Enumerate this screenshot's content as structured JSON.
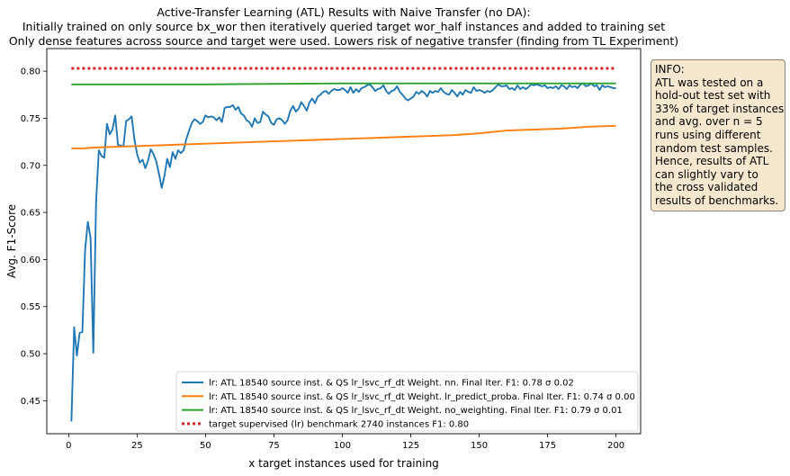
{
  "chart_data": {
    "type": "line",
    "title": [
      "Active-Transfer Learning (ATL) Results with Naive Transfer (no DA):",
      "Initially trained on only source bx_wor then iteratively queried target wor_half instances and added to training set",
      "Only dense features across source and target were used. Lowers risk of negative transfer (finding from TL Experiment)"
    ],
    "xlabel": "x target instances used for training",
    "ylabel": "Avg. F1-Score",
    "xlim": [
      -8,
      209
    ],
    "ylim": [
      0.415,
      0.824
    ],
    "xticks": [
      0,
      25,
      50,
      75,
      100,
      125,
      150,
      175,
      200
    ],
    "yticks": [
      0.45,
      0.5,
      0.55,
      0.6,
      0.65,
      0.7,
      0.75,
      0.8
    ],
    "ytick_labels": [
      "0.45",
      "0.50",
      "0.55",
      "0.60",
      "0.65",
      "0.70",
      "0.75",
      "0.80"
    ],
    "grid": false,
    "legend_position": "lower-right",
    "series": [
      {
        "name": "lr: ATL 18540 source inst. & QS lr_lsvc_rf_dt Weight. nn. Final Iter. F1: 0.78 σ 0.02",
        "color": "#1f77b4",
        "style": "solid",
        "points": [
          [
            1,
            0.428
          ],
          [
            2,
            0.528
          ],
          [
            3,
            0.498
          ],
          [
            4,
            0.522
          ],
          [
            5,
            0.523
          ],
          [
            6,
            0.61
          ],
          [
            7,
            0.64
          ],
          [
            8,
            0.623
          ],
          [
            9,
            0.501
          ],
          [
            10,
            0.66
          ],
          [
            11,
            0.716
          ],
          [
            12,
            0.71
          ],
          [
            13,
            0.708
          ],
          [
            14,
            0.744
          ],
          [
            15,
            0.733
          ],
          [
            16,
            0.738
          ],
          [
            17,
            0.753
          ],
          [
            18,
            0.722
          ],
          [
            19,
            0.721
          ],
          [
            20,
            0.72
          ],
          [
            21,
            0.747
          ],
          [
            22,
            0.749
          ],
          [
            23,
            0.752
          ],
          [
            24,
            0.728
          ],
          [
            25,
            0.712
          ],
          [
            26,
            0.703
          ],
          [
            27,
            0.706
          ],
          [
            28,
            0.697
          ],
          [
            29,
            0.705
          ],
          [
            30,
            0.717
          ],
          [
            31,
            0.712
          ],
          [
            32,
            0.704
          ],
          [
            33,
            0.691
          ],
          [
            34,
            0.676
          ],
          [
            35,
            0.689
          ],
          [
            36,
            0.707
          ],
          [
            37,
            0.698
          ],
          [
            38,
            0.714
          ],
          [
            39,
            0.707
          ],
          [
            40,
            0.716
          ],
          [
            41,
            0.713
          ],
          [
            42,
            0.716
          ],
          [
            43,
            0.728
          ],
          [
            44,
            0.737
          ],
          [
            45,
            0.745
          ],
          [
            46,
            0.749
          ],
          [
            47,
            0.747
          ],
          [
            48,
            0.744
          ],
          [
            49,
            0.746
          ],
          [
            50,
            0.753
          ],
          [
            51,
            0.751
          ],
          [
            52,
            0.752
          ],
          [
            53,
            0.751
          ],
          [
            54,
            0.748
          ],
          [
            55,
            0.751
          ],
          [
            56,
            0.746
          ],
          [
            57,
            0.761
          ],
          [
            58,
            0.762
          ],
          [
            59,
            0.762
          ],
          [
            60,
            0.764
          ],
          [
            61,
            0.759
          ],
          [
            62,
            0.762
          ],
          [
            63,
            0.755
          ],
          [
            64,
            0.753
          ],
          [
            65,
            0.748
          ],
          [
            66,
            0.746
          ],
          [
            67,
            0.741
          ],
          [
            68,
            0.75
          ],
          [
            69,
            0.745
          ],
          [
            70,
            0.746
          ],
          [
            71,
            0.757
          ],
          [
            72,
            0.754
          ],
          [
            73,
            0.752
          ],
          [
            74,
            0.745
          ],
          [
            75,
            0.743
          ],
          [
            76,
            0.749
          ],
          [
            77,
            0.75
          ],
          [
            78,
            0.748
          ],
          [
            79,
            0.744
          ],
          [
            80,
            0.748
          ],
          [
            81,
            0.758
          ],
          [
            82,
            0.763
          ],
          [
            83,
            0.757
          ],
          [
            84,
            0.76
          ],
          [
            85,
            0.767
          ],
          [
            86,
            0.763
          ],
          [
            87,
            0.758
          ],
          [
            88,
            0.767
          ],
          [
            89,
            0.771
          ],
          [
            90,
            0.766
          ],
          [
            91,
            0.773
          ],
          [
            92,
            0.775
          ],
          [
            93,
            0.778
          ],
          [
            94,
            0.779
          ],
          [
            95,
            0.776
          ],
          [
            96,
            0.779
          ],
          [
            97,
            0.781
          ],
          [
            98,
            0.78
          ],
          [
            99,
            0.78
          ],
          [
            100,
            0.782
          ],
          [
            101,
            0.78
          ],
          [
            102,
            0.777
          ],
          [
            103,
            0.783
          ],
          [
            104,
            0.777
          ],
          [
            105,
            0.781
          ],
          [
            106,
            0.778
          ],
          [
            107,
            0.782
          ],
          [
            108,
            0.783
          ],
          [
            109,
            0.785
          ],
          [
            110,
            0.786
          ],
          [
            111,
            0.783
          ],
          [
            112,
            0.779
          ],
          [
            113,
            0.781
          ],
          [
            114,
            0.782
          ],
          [
            115,
            0.785
          ],
          [
            116,
            0.779
          ],
          [
            117,
            0.776
          ],
          [
            118,
            0.779
          ],
          [
            119,
            0.78
          ],
          [
            120,
            0.784
          ],
          [
            121,
            0.778
          ],
          [
            122,
            0.775
          ],
          [
            123,
            0.771
          ],
          [
            124,
            0.769
          ],
          [
            125,
            0.771
          ],
          [
            126,
            0.773
          ],
          [
            127,
            0.778
          ],
          [
            128,
            0.776
          ],
          [
            129,
            0.779
          ],
          [
            130,
            0.777
          ],
          [
            131,
            0.773
          ],
          [
            132,
            0.779
          ],
          [
            133,
            0.777
          ],
          [
            134,
            0.779
          ],
          [
            135,
            0.778
          ],
          [
            136,
            0.782
          ],
          [
            137,
            0.778
          ],
          [
            138,
            0.776
          ],
          [
            139,
            0.775
          ],
          [
            140,
            0.78
          ],
          [
            141,
            0.777
          ],
          [
            142,
            0.773
          ],
          [
            143,
            0.778
          ],
          [
            144,
            0.775
          ],
          [
            145,
            0.78
          ],
          [
            146,
            0.778
          ],
          [
            147,
            0.777
          ],
          [
            148,
            0.783
          ],
          [
            149,
            0.779
          ],
          [
            150,
            0.78
          ],
          [
            151,
            0.779
          ],
          [
            152,
            0.777
          ],
          [
            153,
            0.779
          ],
          [
            154,
            0.778
          ],
          [
            155,
            0.78
          ],
          [
            156,
            0.783
          ],
          [
            157,
            0.786
          ],
          [
            158,
            0.784
          ],
          [
            159,
            0.784
          ],
          [
            160,
            0.785
          ],
          [
            161,
            0.781
          ],
          [
            162,
            0.782
          ],
          [
            163,
            0.78
          ],
          [
            164,
            0.785
          ],
          [
            165,
            0.781
          ],
          [
            166,
            0.783
          ],
          [
            167,
            0.781
          ],
          [
            168,
            0.783
          ],
          [
            169,
            0.786
          ],
          [
            170,
            0.785
          ],
          [
            171,
            0.786
          ],
          [
            172,
            0.785
          ],
          [
            173,
            0.784
          ],
          [
            174,
            0.785
          ],
          [
            175,
            0.782
          ],
          [
            176,
            0.783
          ],
          [
            177,
            0.782
          ],
          [
            178,
            0.784
          ],
          [
            179,
            0.781
          ],
          [
            180,
            0.785
          ],
          [
            181,
            0.784
          ],
          [
            182,
            0.781
          ],
          [
            183,
            0.785
          ],
          [
            184,
            0.783
          ],
          [
            185,
            0.784
          ],
          [
            186,
            0.782
          ],
          [
            187,
            0.786
          ],
          [
            188,
            0.787
          ],
          [
            189,
            0.784
          ],
          [
            190,
            0.785
          ],
          [
            191,
            0.787
          ],
          [
            192,
            0.784
          ],
          [
            193,
            0.785
          ],
          [
            194,
            0.78
          ],
          [
            195,
            0.785
          ],
          [
            196,
            0.783
          ],
          [
            197,
            0.784
          ],
          [
            198,
            0.783
          ],
          [
            199,
            0.782
          ],
          [
            200,
            0.782
          ]
        ]
      },
      {
        "name": "lr: ATL 18540 source inst. & QS lr_lsvc_rf_dt Weight. lr_predict_proba. Final Iter. F1: 0.74 σ 0.00",
        "color": "#ff7f0e",
        "style": "solid",
        "points": [
          [
            1,
            0.718
          ],
          [
            5,
            0.718
          ],
          [
            10,
            0.719
          ],
          [
            20,
            0.72
          ],
          [
            30,
            0.721
          ],
          [
            40,
            0.722
          ],
          [
            50,
            0.723
          ],
          [
            60,
            0.724
          ],
          [
            70,
            0.725
          ],
          [
            80,
            0.726
          ],
          [
            90,
            0.727
          ],
          [
            100,
            0.728
          ],
          [
            110,
            0.729
          ],
          [
            120,
            0.73
          ],
          [
            130,
            0.731
          ],
          [
            140,
            0.732
          ],
          [
            150,
            0.734
          ],
          [
            160,
            0.737
          ],
          [
            170,
            0.738
          ],
          [
            180,
            0.739
          ],
          [
            190,
            0.741
          ],
          [
            200,
            0.742
          ]
        ]
      },
      {
        "name": "lr: ATL 18540 source inst. & QS lr_lsvc_rf_dt Weight. no_weighting. Final Iter. F1: 0.79 σ 0.01",
        "color": "#2ca02c",
        "style": "solid",
        "points": [
          [
            1,
            0.786
          ],
          [
            50,
            0.786
          ],
          [
            100,
            0.787
          ],
          [
            150,
            0.787
          ],
          [
            200,
            0.787
          ]
        ]
      },
      {
        "name": "target supervised (lr) benchmark 2740 instances F1: 0.80",
        "color": "#d62728",
        "style": "dotted",
        "points": [
          [
            1,
            0.803
          ],
          [
            200,
            0.803
          ]
        ]
      }
    ]
  },
  "info_box": {
    "lines": [
      "INFO:",
      "ATL was tested on a",
      "hold-out test set with",
      "33% of target instances",
      "and avg. over n = 5",
      "runs using different",
      "random test samples.",
      "Hence, results of ATL",
      "can slightly vary to",
      "the cross validated",
      "results of benchmarks."
    ]
  }
}
